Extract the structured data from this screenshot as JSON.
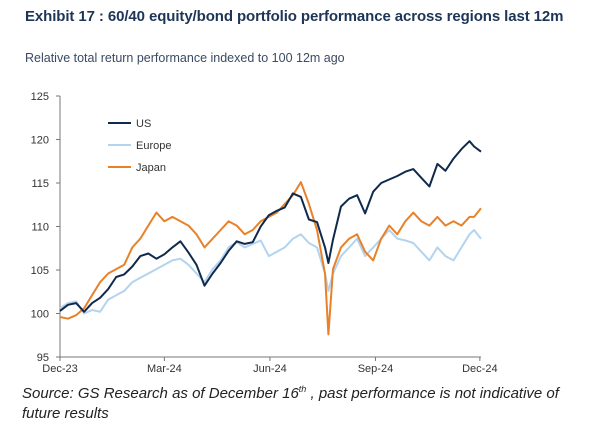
{
  "header": {
    "title": "Exhibit 17 : 60/40 equity/bond portfolio performance across regions last 12m",
    "subtitle": "Relative total return performance indexed to 100 12m ago"
  },
  "footer": {
    "source_before": "Source: GS Research as of December 16",
    "source_sup": "th",
    "source_after": " , past performance is not indicative of future results"
  },
  "colors": {
    "US": "#0f2a4d",
    "Europe": "#b3d3ee",
    "Japan": "#e8822a",
    "axis": "#777777",
    "tick_text": "#333333"
  },
  "chart_data": {
    "type": "line",
    "title": "Exhibit 17 : 60/40 equity/bond portfolio performance across regions last 12m",
    "subtitle": "Relative total return performance indexed to 100 12m ago",
    "xlabel": "",
    "ylabel": "",
    "xlim": [
      "2023-12-15",
      "2024-12-16"
    ],
    "ylim": [
      95,
      125
    ],
    "yticks": [
      95,
      100,
      105,
      110,
      115,
      120,
      125
    ],
    "xticks": [
      {
        "date": "2023-12-15",
        "label": "Dec-23"
      },
      {
        "date": "2024-03-15",
        "label": "Mar-24"
      },
      {
        "date": "2024-06-15",
        "label": "Jun-24"
      },
      {
        "date": "2024-09-15",
        "label": "Sep-24"
      },
      {
        "date": "2024-12-15",
        "label": "Dec-24"
      }
    ],
    "grid": false,
    "legend_position": "top-left",
    "series": [
      {
        "name": "US",
        "points": [
          [
            "2023-12-15",
            100.3
          ],
          [
            "2023-12-22",
            101.0
          ],
          [
            "2023-12-29",
            101.2
          ],
          [
            "2024-01-05",
            100.2
          ],
          [
            "2024-01-12",
            101.2
          ],
          [
            "2024-01-19",
            101.8
          ],
          [
            "2024-01-26",
            102.8
          ],
          [
            "2024-02-02",
            104.2
          ],
          [
            "2024-02-09",
            104.5
          ],
          [
            "2024-02-16",
            105.4
          ],
          [
            "2024-02-23",
            106.6
          ],
          [
            "2024-03-01",
            106.9
          ],
          [
            "2024-03-08",
            106.3
          ],
          [
            "2024-03-15",
            106.8
          ],
          [
            "2024-03-22",
            107.6
          ],
          [
            "2024-03-29",
            108.3
          ],
          [
            "2024-04-05",
            107.0
          ],
          [
            "2024-04-12",
            105.6
          ],
          [
            "2024-04-19",
            103.2
          ],
          [
            "2024-04-26",
            104.6
          ],
          [
            "2024-05-03",
            105.8
          ],
          [
            "2024-05-10",
            107.2
          ],
          [
            "2024-05-17",
            108.3
          ],
          [
            "2024-05-24",
            108.0
          ],
          [
            "2024-05-31",
            108.2
          ],
          [
            "2024-06-07",
            110.0
          ],
          [
            "2024-06-14",
            111.3
          ],
          [
            "2024-06-21",
            111.8
          ],
          [
            "2024-06-28",
            112.2
          ],
          [
            "2024-07-05",
            113.8
          ],
          [
            "2024-07-12",
            113.4
          ],
          [
            "2024-07-19",
            110.8
          ],
          [
            "2024-07-26",
            110.5
          ],
          [
            "2024-08-02",
            107.6
          ],
          [
            "2024-08-05",
            105.8
          ],
          [
            "2024-08-09",
            108.5
          ],
          [
            "2024-08-16",
            112.3
          ],
          [
            "2024-08-23",
            113.2
          ],
          [
            "2024-08-30",
            113.6
          ],
          [
            "2024-09-06",
            111.5
          ],
          [
            "2024-09-13",
            114.0
          ],
          [
            "2024-09-20",
            115.0
          ],
          [
            "2024-09-27",
            115.4
          ],
          [
            "2024-10-04",
            115.8
          ],
          [
            "2024-10-11",
            116.3
          ],
          [
            "2024-10-18",
            116.6
          ],
          [
            "2024-10-25",
            115.6
          ],
          [
            "2024-11-01",
            114.6
          ],
          [
            "2024-11-08",
            117.2
          ],
          [
            "2024-11-15",
            116.4
          ],
          [
            "2024-11-22",
            117.8
          ],
          [
            "2024-11-29",
            118.9
          ],
          [
            "2024-12-06",
            119.8
          ],
          [
            "2024-12-10",
            119.2
          ],
          [
            "2024-12-16",
            118.6
          ]
        ]
      },
      {
        "name": "Europe",
        "points": [
          [
            "2023-12-15",
            100.6
          ],
          [
            "2023-12-22",
            101.2
          ],
          [
            "2023-12-29",
            101.4
          ],
          [
            "2024-01-05",
            100.0
          ],
          [
            "2024-01-12",
            100.4
          ],
          [
            "2024-01-19",
            100.2
          ],
          [
            "2024-01-26",
            101.6
          ],
          [
            "2024-02-02",
            102.1
          ],
          [
            "2024-02-09",
            102.6
          ],
          [
            "2024-02-16",
            103.6
          ],
          [
            "2024-02-23",
            104.1
          ],
          [
            "2024-03-01",
            104.6
          ],
          [
            "2024-03-08",
            105.1
          ],
          [
            "2024-03-15",
            105.6
          ],
          [
            "2024-03-22",
            106.1
          ],
          [
            "2024-03-29",
            106.3
          ],
          [
            "2024-04-05",
            105.6
          ],
          [
            "2024-04-12",
            104.6
          ],
          [
            "2024-04-19",
            103.6
          ],
          [
            "2024-04-26",
            105.1
          ],
          [
            "2024-05-03",
            106.1
          ],
          [
            "2024-05-10",
            107.6
          ],
          [
            "2024-05-17",
            108.2
          ],
          [
            "2024-05-24",
            107.6
          ],
          [
            "2024-05-31",
            108.0
          ],
          [
            "2024-06-07",
            108.4
          ],
          [
            "2024-06-14",
            106.6
          ],
          [
            "2024-06-21",
            107.1
          ],
          [
            "2024-06-28",
            107.6
          ],
          [
            "2024-07-05",
            108.6
          ],
          [
            "2024-07-12",
            109.1
          ],
          [
            "2024-07-19",
            108.1
          ],
          [
            "2024-07-26",
            107.6
          ],
          [
            "2024-08-02",
            104.6
          ],
          [
            "2024-08-05",
            102.6
          ],
          [
            "2024-08-09",
            104.6
          ],
          [
            "2024-08-16",
            106.6
          ],
          [
            "2024-08-23",
            107.6
          ],
          [
            "2024-08-30",
            108.6
          ],
          [
            "2024-09-06",
            106.6
          ],
          [
            "2024-09-13",
            107.6
          ],
          [
            "2024-09-20",
            108.6
          ],
          [
            "2024-09-27",
            109.6
          ],
          [
            "2024-10-04",
            108.6
          ],
          [
            "2024-10-11",
            108.4
          ],
          [
            "2024-10-18",
            108.1
          ],
          [
            "2024-10-25",
            107.1
          ],
          [
            "2024-11-01",
            106.1
          ],
          [
            "2024-11-08",
            107.6
          ],
          [
            "2024-11-15",
            106.6
          ],
          [
            "2024-11-22",
            106.1
          ],
          [
            "2024-11-29",
            107.6
          ],
          [
            "2024-12-06",
            109.1
          ],
          [
            "2024-12-10",
            109.6
          ],
          [
            "2024-12-16",
            108.6
          ]
        ]
      },
      {
        "name": "Japan",
        "points": [
          [
            "2023-12-15",
            99.6
          ],
          [
            "2023-12-22",
            99.4
          ],
          [
            "2023-12-29",
            99.8
          ],
          [
            "2024-01-05",
            100.6
          ],
          [
            "2024-01-12",
            102.1
          ],
          [
            "2024-01-19",
            103.6
          ],
          [
            "2024-01-26",
            104.6
          ],
          [
            "2024-02-02",
            105.1
          ],
          [
            "2024-02-09",
            105.6
          ],
          [
            "2024-02-16",
            107.6
          ],
          [
            "2024-02-23",
            108.6
          ],
          [
            "2024-03-01",
            110.1
          ],
          [
            "2024-03-08",
            111.6
          ],
          [
            "2024-03-15",
            110.6
          ],
          [
            "2024-03-22",
            111.1
          ],
          [
            "2024-03-29",
            110.6
          ],
          [
            "2024-04-05",
            110.1
          ],
          [
            "2024-04-12",
            109.1
          ],
          [
            "2024-04-19",
            107.6
          ],
          [
            "2024-04-26",
            108.6
          ],
          [
            "2024-05-03",
            109.6
          ],
          [
            "2024-05-10",
            110.6
          ],
          [
            "2024-05-17",
            110.1
          ],
          [
            "2024-05-24",
            109.1
          ],
          [
            "2024-05-31",
            109.6
          ],
          [
            "2024-06-07",
            110.6
          ],
          [
            "2024-06-14",
            111.1
          ],
          [
            "2024-06-21",
            111.6
          ],
          [
            "2024-06-28",
            112.6
          ],
          [
            "2024-07-05",
            113.6
          ],
          [
            "2024-07-12",
            115.1
          ],
          [
            "2024-07-19",
            112.6
          ],
          [
            "2024-07-26",
            109.6
          ],
          [
            "2024-08-02",
            104.6
          ],
          [
            "2024-08-05",
            97.6
          ],
          [
            "2024-08-09",
            105.1
          ],
          [
            "2024-08-16",
            107.6
          ],
          [
            "2024-08-23",
            108.6
          ],
          [
            "2024-08-30",
            109.1
          ],
          [
            "2024-09-06",
            107.1
          ],
          [
            "2024-09-13",
            106.1
          ],
          [
            "2024-09-20",
            108.6
          ],
          [
            "2024-09-27",
            110.1
          ],
          [
            "2024-10-04",
            109.1
          ],
          [
            "2024-10-11",
            110.6
          ],
          [
            "2024-10-18",
            111.6
          ],
          [
            "2024-10-25",
            110.6
          ],
          [
            "2024-11-01",
            110.1
          ],
          [
            "2024-11-08",
            111.1
          ],
          [
            "2024-11-15",
            110.1
          ],
          [
            "2024-11-22",
            110.6
          ],
          [
            "2024-11-29",
            110.1
          ],
          [
            "2024-12-06",
            111.1
          ],
          [
            "2024-12-10",
            111.1
          ],
          [
            "2024-12-16",
            112.1
          ]
        ]
      }
    ]
  }
}
